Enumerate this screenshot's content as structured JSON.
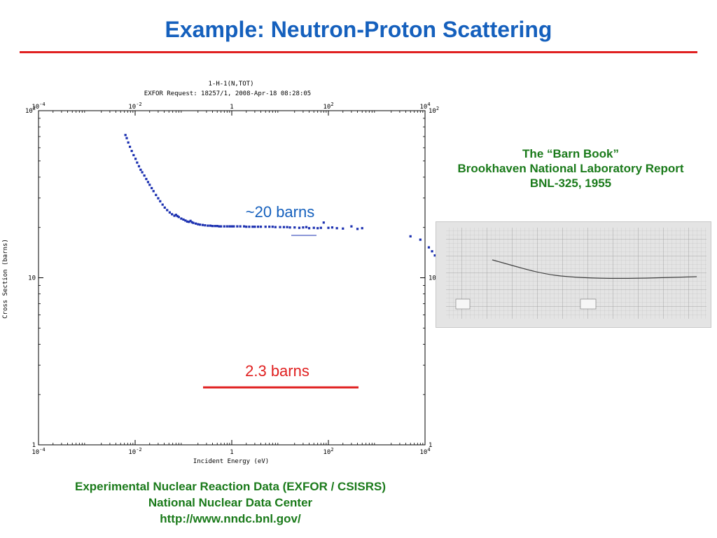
{
  "slide": {
    "title": "Example: Neutron-Proton Scattering"
  },
  "plot": {
    "header_line1": "1-H-1(N,TOT)",
    "header_line2": "EXFOR Request: 18257/1, 2008-Apr-18 08:28:05",
    "annotation_20_barns": "~20 barns",
    "annotation_2_3_barns": "2.3 barns",
    "colors": {
      "data": "#1a2fb0",
      "red_line": "#e02020",
      "annotation_blue": "#1560bd",
      "annotation_red": "#e02020"
    }
  },
  "chart_data": {
    "type": "scatter",
    "title": "1-H-1(N,TOT)",
    "subtitle": "EXFOR Request: 18257/1, 2008-Apr-18 08:28:05",
    "xlabel": "Incident Energy (eV)",
    "ylabel": "Cross Section (barns)",
    "x_scale": "log",
    "y_scale": "log",
    "xlim": [
      0.0001,
      10000
    ],
    "ylim": [
      1,
      100
    ],
    "x_ticks": [
      0.0001,
      0.01,
      1,
      100,
      10000
    ],
    "x_tick_labels": [
      {
        "base": "10",
        "exp": "-4"
      },
      {
        "base": "10",
        "exp": "-2"
      },
      {
        "base": "1",
        "exp": ""
      },
      {
        "base": "10",
        "exp": "2"
      },
      {
        "base": "10",
        "exp": "4"
      }
    ],
    "y_ticks": [
      1,
      10,
      100
    ],
    "y_tick_labels": [
      {
        "base": "1",
        "exp": ""
      },
      {
        "base": "10",
        "exp": ""
      },
      {
        "base": "10",
        "exp": "2"
      }
    ],
    "grid": false,
    "series": [
      {
        "points": [
          [
            0.0063,
            71.5
          ],
          [
            0.0067,
            68.5
          ],
          [
            0.0072,
            64.5
          ],
          [
            0.0078,
            60.8
          ],
          [
            0.0085,
            57.4
          ],
          [
            0.0093,
            54.2
          ],
          [
            0.0102,
            51.5
          ],
          [
            0.011,
            48.9
          ],
          [
            0.012,
            46.5
          ],
          [
            0.013,
            44.3
          ],
          [
            0.014,
            42.8
          ],
          [
            0.0155,
            40.9
          ],
          [
            0.017,
            39.0
          ],
          [
            0.0185,
            37.4
          ],
          [
            0.02,
            36.0
          ],
          [
            0.022,
            34.4
          ],
          [
            0.024,
            33.0
          ],
          [
            0.027,
            31.3
          ],
          [
            0.03,
            29.9
          ],
          [
            0.033,
            28.7
          ],
          [
            0.037,
            27.4
          ],
          [
            0.041,
            26.3
          ],
          [
            0.046,
            25.4
          ],
          [
            0.052,
            24.6
          ],
          [
            0.058,
            24.0
          ],
          [
            0.065,
            23.5
          ],
          [
            0.07,
            23.8
          ],
          [
            0.075,
            23.4
          ],
          [
            0.08,
            23.1
          ],
          [
            0.09,
            22.6
          ],
          [
            0.1,
            22.3
          ],
          [
            0.11,
            22.0
          ],
          [
            0.12,
            21.7
          ],
          [
            0.13,
            21.6
          ],
          [
            0.14,
            21.9
          ],
          [
            0.15,
            21.5
          ],
          [
            0.16,
            21.3
          ],
          [
            0.18,
            21.1
          ],
          [
            0.2,
            20.9
          ],
          [
            0.22,
            20.8
          ],
          [
            0.25,
            20.7
          ],
          [
            0.28,
            20.6
          ],
          [
            0.32,
            20.5
          ],
          [
            0.36,
            20.5
          ],
          [
            0.4,
            20.4
          ],
          [
            0.45,
            20.4
          ],
          [
            0.5,
            20.4
          ],
          [
            0.55,
            20.3
          ],
          [
            0.6,
            20.3
          ],
          [
            0.7,
            20.3
          ],
          [
            0.8,
            20.3
          ],
          [
            0.9,
            20.3
          ],
          [
            1.0,
            20.3
          ],
          [
            1.1,
            20.3
          ],
          [
            1.3,
            20.3
          ],
          [
            1.5,
            20.3
          ],
          [
            1.8,
            20.3
          ],
          [
            2.0,
            20.2
          ],
          [
            2.3,
            20.2
          ],
          [
            2.7,
            20.2
          ],
          [
            3.0,
            20.2
          ],
          [
            3.5,
            20.2
          ],
          [
            4.0,
            20.2
          ],
          [
            5.0,
            20.2
          ],
          [
            6.0,
            20.2
          ],
          [
            7.0,
            20.2
          ],
          [
            8.0,
            20.1
          ],
          [
            10.0,
            20.1
          ],
          [
            12.0,
            20.1
          ],
          [
            14.0,
            20.1
          ],
          [
            16.0,
            20.0
          ],
          [
            20.0,
            20.0
          ],
          [
            25.0,
            19.9
          ],
          [
            30.0,
            20.0
          ],
          [
            35.0,
            20.1
          ],
          [
            40.0,
            19.8
          ],
          [
            50.0,
            19.9
          ],
          [
            60.0,
            19.8
          ],
          [
            70.0,
            19.9
          ],
          [
            80.0,
            21.4
          ],
          [
            100.0,
            19.9
          ],
          [
            120.0,
            20.0
          ],
          [
            150.0,
            19.8
          ],
          [
            200.0,
            19.7
          ],
          [
            300.0,
            20.3
          ],
          [
            400.0,
            19.6
          ],
          [
            500.0,
            19.8
          ],
          [
            5000.0,
            17.7
          ],
          [
            8000.0,
            16.9
          ],
          [
            12000.0,
            15.2
          ],
          [
            14000.0,
            14.4
          ],
          [
            16000.0,
            13.6
          ]
        ]
      }
    ]
  },
  "barn_book": {
    "caption_line1": "The “Barn Book”",
    "caption_line2": "Brookhaven National Laboratory Report",
    "caption_line3": "BNL-325, 1955"
  },
  "source": {
    "line1": "Experimental Nuclear Reaction Data (EXFOR / CSISRS)",
    "line2": "National Nuclear Data Center",
    "line3": "http://www.nndc.bnl.gov/"
  }
}
